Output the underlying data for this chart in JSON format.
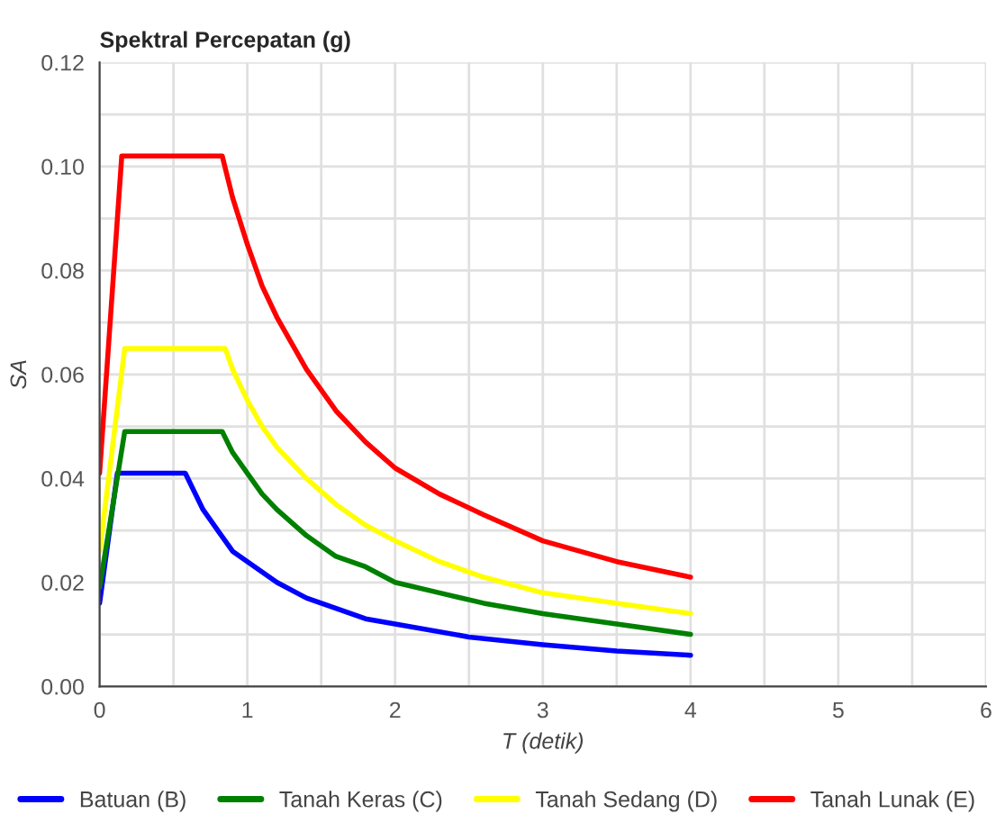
{
  "chart_data": {
    "type": "line",
    "title": "Spektral Percepatan (g)",
    "xlabel": "T (detik)",
    "ylabel": "SA",
    "xlim": [
      0,
      6
    ],
    "ylim": [
      0,
      0.12
    ],
    "xticks": [
      0,
      {
        "value": 0.5,
        "label": null
      },
      1,
      {
        "value": 1.5,
        "label": null
      },
      2,
      {
        "value": 2.5,
        "label": null
      },
      3,
      {
        "value": 3.5,
        "label": null
      },
      4,
      {
        "value": 4.5,
        "label": null
      },
      5,
      {
        "value": 5.5,
        "label": null
      },
      6
    ],
    "yticks": [
      {
        "value": 0,
        "label": "0.00"
      },
      {
        "value": 0.01,
        "label": null
      },
      {
        "value": 0.02,
        "label": "0.02"
      },
      {
        "value": 0.03,
        "label": null
      },
      {
        "value": 0.04,
        "label": "0.04"
      },
      {
        "value": 0.05,
        "label": null
      },
      {
        "value": 0.06,
        "label": "0.06"
      },
      {
        "value": 0.07,
        "label": null
      },
      {
        "value": 0.08,
        "label": "0.08"
      },
      {
        "value": 0.09,
        "label": null
      },
      {
        "value": 0.1,
        "label": "0.10"
      },
      {
        "value": 0.11,
        "label": null
      },
      {
        "value": 0.12,
        "label": "0.12"
      }
    ],
    "grid": true,
    "legend": "bottom",
    "marker": "none",
    "line_style": "solid",
    "series": [
      {
        "name": "Batuan (B)",
        "color": "#0000ff",
        "x": [
          0,
          0.12,
          0.58,
          0.7,
          0.8,
          0.9,
          1.0,
          1.2,
          1.4,
          1.6,
          1.8,
          2.0,
          2.5,
          3.0,
          3.5,
          4.0
        ],
        "values": [
          0.016,
          0.041,
          0.041,
          0.034,
          0.03,
          0.026,
          0.024,
          0.02,
          0.017,
          0.015,
          0.013,
          0.012,
          0.0095,
          0.008,
          0.0068,
          0.006
        ]
      },
      {
        "name": "Tanah Keras (C)",
        "color": "#008000",
        "x": [
          0,
          0.17,
          0.83,
          0.9,
          1.0,
          1.1,
          1.2,
          1.4,
          1.6,
          1.8,
          2.0,
          2.3,
          2.6,
          3.0,
          3.5,
          4.0
        ],
        "values": [
          0.019,
          0.049,
          0.049,
          0.045,
          0.041,
          0.037,
          0.034,
          0.029,
          0.025,
          0.023,
          0.02,
          0.018,
          0.016,
          0.014,
          0.012,
          0.01
        ]
      },
      {
        "name": "Tanah Sedang (D)",
        "color": "#ffff00",
        "x": [
          0,
          0.17,
          0.85,
          0.9,
          1.0,
          1.1,
          1.2,
          1.4,
          1.6,
          1.8,
          2.0,
          2.3,
          2.6,
          3.0,
          3.5,
          4.0
        ],
        "values": [
          0.026,
          0.065,
          0.065,
          0.061,
          0.055,
          0.05,
          0.046,
          0.04,
          0.035,
          0.031,
          0.028,
          0.024,
          0.021,
          0.018,
          0.016,
          0.014
        ]
      },
      {
        "name": "Tanah Lunak (E)",
        "color": "#ff0000",
        "x": [
          0,
          0.15,
          0.83,
          0.9,
          1.0,
          1.1,
          1.2,
          1.4,
          1.6,
          1.8,
          2.0,
          2.3,
          2.6,
          3.0,
          3.5,
          4.0
        ],
        "values": [
          0.041,
          0.102,
          0.102,
          0.094,
          0.085,
          0.077,
          0.071,
          0.061,
          0.053,
          0.047,
          0.042,
          0.037,
          0.033,
          0.028,
          0.024,
          0.021
        ]
      }
    ]
  }
}
